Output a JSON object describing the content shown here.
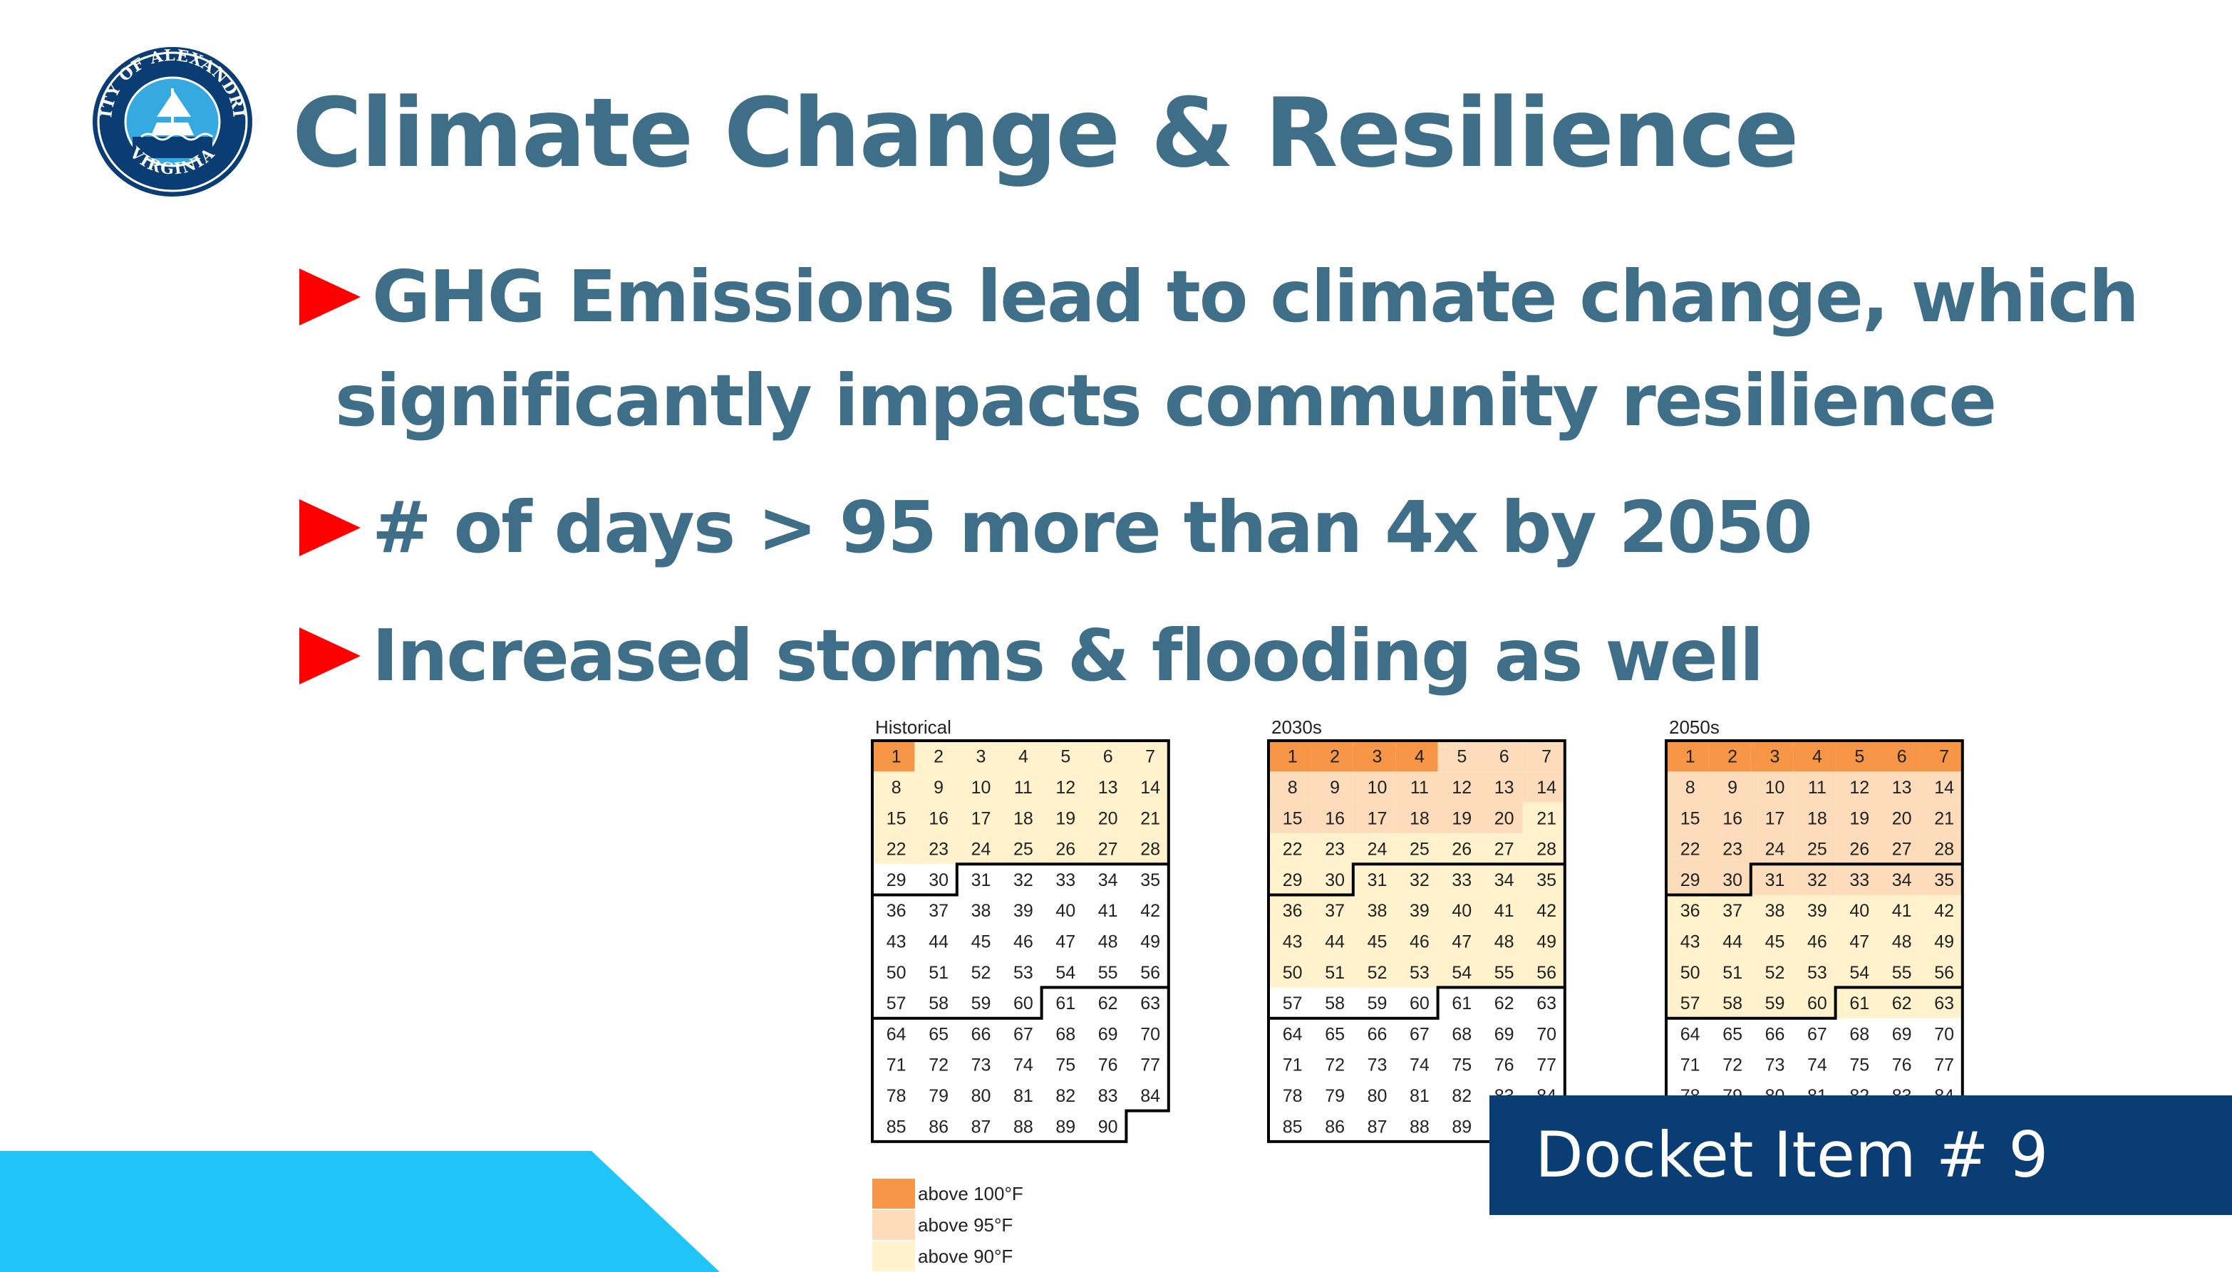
{
  "slide": {
    "title": "Climate Change & Resilience",
    "seal": {
      "text_top": "CITY OF ALEXANDRIA",
      "text_bottom": "VIRGINIA"
    },
    "bullets": [
      {
        "line1": "GHG Emissions lead to climate change, which",
        "line2": "significantly impacts community resilience"
      },
      {
        "line1": "# of days > 95 more than 4x by 2050"
      },
      {
        "line1": "Increased storms & flooding as well"
      }
    ],
    "legend": [
      {
        "label": "above 100°F",
        "color": "#f79646"
      },
      {
        "label": "above 95°F",
        "color": "#fcdcbb"
      },
      {
        "label": "above 90°F",
        "color": "#fff2cc"
      }
    ],
    "calendars": [
      {
        "title": "Historical",
        "above100": 1,
        "above95": 1,
        "above90": 28
      },
      {
        "title": "2030s",
        "above100": 4,
        "above95": 20,
        "above90": 56
      },
      {
        "title": "2050s",
        "above100": 7,
        "above95": 35,
        "above90": 63
      }
    ],
    "docket": "Docket Item # 9"
  }
}
